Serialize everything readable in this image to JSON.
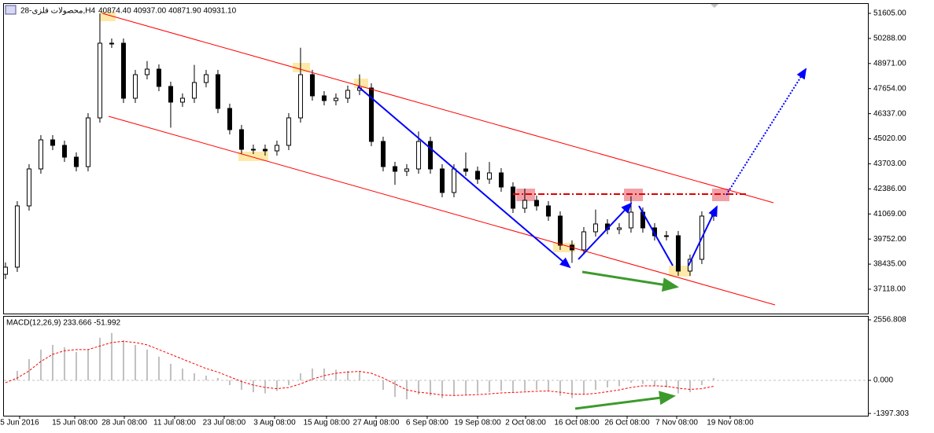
{
  "chart_data": [
    {
      "type": "candlestick",
      "title": "28-محصولات فلزی,H4",
      "subtitle": "40874.40 40937.00 40871.90 40931.10",
      "categories": [
        null,
        null,
        null,
        null,
        null,
        null,
        null,
        null,
        null,
        null,
        null,
        null,
        null,
        null,
        null,
        null,
        null,
        null,
        null,
        null,
        null,
        null,
        null,
        null,
        null,
        null,
        null,
        null,
        null,
        null,
        null,
        null,
        null,
        null,
        null,
        null,
        null,
        null,
        null,
        null,
        null,
        null,
        null,
        null,
        null,
        null,
        null,
        null,
        null,
        null,
        null,
        null,
        null,
        null,
        null,
        null,
        null,
        null,
        null,
        null,
        null
      ],
      "open": [
        37900,
        38275,
        41494,
        43434,
        44961,
        44672,
        44053,
        43557,
        46116,
        50037,
        50037,
        47148,
        48386,
        48675,
        47767,
        46942,
        47148,
        47973,
        48386,
        46611,
        45497,
        44465,
        44465,
        44383,
        44672,
        46116,
        48386,
        47272,
        47024,
        47148,
        47561,
        47684,
        44878,
        43557,
        43310,
        43434,
        44878,
        43434,
        42196,
        43434,
        43310,
        42897,
        43227,
        42484,
        41370,
        41783,
        41494,
        40958,
        39431,
        39183,
        40132,
        40545,
        40256,
        40338,
        41164,
        40338,
        39926,
        39926,
        38069,
        38687,
        40958
      ],
      "high": [
        38525,
        41744,
        43684,
        45211,
        45211,
        44922,
        44303,
        46366,
        51600,
        50287,
        50287,
        48636,
        49100,
        48925,
        48017,
        47398,
        48900,
        48636,
        48636,
        46861,
        45747,
        44715,
        44715,
        44922,
        46366,
        49800,
        48636,
        47522,
        47398,
        47811,
        48400,
        47934,
        45128,
        43807,
        43684,
        45400,
        45128,
        43684,
        43684,
        44300,
        43560,
        43800,
        43477,
        42734,
        42400,
        42033,
        41744,
        41208,
        39681,
        40382,
        41300,
        40795,
        40588,
        42000,
        41414,
        40588,
        40176,
        40176,
        38937,
        41208,
        41331
      ],
      "low": [
        37650,
        38025,
        41244,
        43184,
        44422,
        43803,
        43307,
        43307,
        45866,
        49787,
        46898,
        46898,
        48136,
        47517,
        45600,
        46692,
        46898,
        47723,
        46361,
        45247,
        44215,
        44215,
        44133,
        44133,
        44422,
        45866,
        47022,
        46774,
        46774,
        46898,
        47311,
        44628,
        43307,
        42600,
        43060,
        43184,
        43184,
        41946,
        41946,
        43060,
        42647,
        42647,
        42234,
        41120,
        41120,
        41244,
        40708,
        39181,
        38500,
        38933,
        39882,
        40006,
        40006,
        40088,
        40088,
        39676,
        39676,
        37819,
        37819,
        38437,
        40708
      ],
      "close": [
        38275,
        41494,
        43434,
        44961,
        44672,
        44053,
        43557,
        46116,
        50037,
        50037,
        47148,
        48386,
        48675,
        47767,
        46942,
        47148,
        47973,
        48386,
        46611,
        45497,
        44465,
        44465,
        44383,
        44672,
        46116,
        48386,
        47272,
        47024,
        47148,
        47561,
        47684,
        44878,
        43557,
        43310,
        43434,
        44878,
        43434,
        42196,
        43434,
        43310,
        42897,
        43227,
        42484,
        41370,
        41783,
        41494,
        40958,
        39431,
        39183,
        40132,
        40545,
        40256,
        40338,
        41164,
        40338,
        39926,
        39926,
        38069,
        38687,
        40958,
        41081
      ],
      "ylim": [
        35880,
        52100
      ],
      "yticks": [
        {
          "value": 51605,
          "label": "51605.00"
        },
        {
          "value": 50288,
          "label": "50288.00"
        },
        {
          "value": 48971,
          "label": "48971.00"
        },
        {
          "value": 47654,
          "label": "47654.00"
        },
        {
          "value": 46337,
          "label": "46337.00"
        },
        {
          "value": 45020,
          "label": "45020.00"
        },
        {
          "value": 43703,
          "label": "43703.00"
        },
        {
          "value": 42386,
          "label": "42386.00"
        },
        {
          "value": 41069,
          "label": "41069.00"
        },
        {
          "value": 39752,
          "label": "39752.00"
        },
        {
          "value": 38435,
          "label": "38435.00"
        },
        {
          "value": 37118,
          "label": "37118.00"
        }
      ],
      "xlim": [
        -0.13,
        73.07
      ],
      "xticks": [
        {
          "value": 1.2,
          "label": "5 Jun 2016"
        },
        {
          "value": 5.87,
          "label": "15 Jun 08:00"
        },
        {
          "value": 10.07,
          "label": "28 Jun 08:00"
        },
        {
          "value": 14.33,
          "label": "11 Jul 08:00"
        },
        {
          "value": 18.53,
          "label": "23 Jul 08:00"
        },
        {
          "value": 22.8,
          "label": "3 Aug 08:00"
        },
        {
          "value": 27.2,
          "label": "15 Aug 08:00"
        },
        {
          "value": 31.4,
          "label": "27 Aug 08:00"
        },
        {
          "value": 35.73,
          "label": "6 Sep 08:00"
        },
        {
          "value": 40,
          "label": "19 Sep 08:00"
        },
        {
          "value": 44.07,
          "label": "2 Oct 08:00"
        },
        {
          "value": 48.4,
          "label": "16 Oct 08:00"
        },
        {
          "value": 52.67,
          "label": "26 Oct 08:00"
        },
        {
          "value": 56.87,
          "label": "7 Nov 08:00"
        },
        {
          "value": 61.4,
          "label": "19 Nov 08:00"
        }
      ],
      "grid": false,
      "up_color": "#ffffff",
      "down_color": "#000000"
    },
    {
      "type": "macd",
      "title": "MACD(12,26,9) 233.666 -51.992",
      "series": [
        {
          "color": "#c0c0c0",
          "style": "histogram",
          "values": [
            0,
            400,
            900,
            1300,
            1500,
            1400,
            1200,
            1300,
            1800,
            2000,
            1700,
            1500,
            1300,
            1000,
            700,
            500,
            300,
            200,
            100,
            -200,
            -400,
            -500,
            -550,
            -450,
            -200,
            300,
            500,
            500,
            450,
            400,
            400,
            0,
            -400,
            -700,
            -800,
            -600,
            -650,
            -750,
            -650,
            -600,
            -550,
            -500,
            -450,
            -500,
            -450,
            -400,
            -450,
            -650,
            -750,
            -600,
            -400,
            -300,
            -250,
            -100,
            -150,
            -250,
            -300,
            -550,
            -500,
            -200,
            100
          ]
        },
        {
          "color": "#ff0000",
          "style": "dashed",
          "values": [
            -100,
            100,
            400,
            800,
            1100,
            1250,
            1300,
            1300,
            1450,
            1600,
            1650,
            1600,
            1500,
            1300,
            1100,
            900,
            700,
            500,
            350,
            150,
            -50,
            -200,
            -300,
            -350,
            -300,
            -150,
            50,
            200,
            300,
            350,
            380,
            300,
            100,
            -150,
            -400,
            -500,
            -550,
            -620,
            -640,
            -620,
            -600,
            -570,
            -530,
            -510,
            -490,
            -460,
            -450,
            -500,
            -570,
            -590,
            -550,
            -480,
            -400,
            -300,
            -230,
            -230,
            -250,
            -330,
            -380,
            -350,
            -250
          ]
        }
      ],
      "ylim": [
        -1460,
        2690
      ],
      "yticks": [
        {
          "value": 2556.808,
          "label": "2556.808"
        },
        {
          "value": 0,
          "label": "0.000"
        },
        {
          "value": -1397.303,
          "label": "-1397.303"
        }
      ]
    }
  ]
}
